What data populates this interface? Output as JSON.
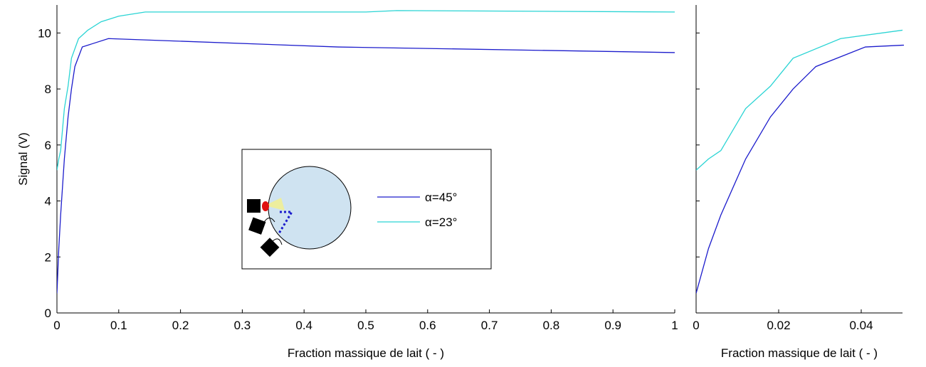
{
  "chart_data": [
    {
      "type": "line",
      "xlabel": "Fraction massique de lait ( - )",
      "ylabel": "Signal (V)",
      "xlim": [
        0,
        1
      ],
      "ylim": [
        0,
        11
      ],
      "xticks": [
        0,
        0.1,
        0.2,
        0.3,
        0.4,
        0.5,
        0.6,
        0.7,
        0.8,
        0.9,
        1
      ],
      "yticks": [
        0,
        2,
        4,
        6,
        8,
        10
      ],
      "ytick_labels": true,
      "legend": true,
      "series": [
        {
          "name": "α=45°",
          "color": "#1c1ccc",
          "x": [
            0,
            0.003,
            0.006,
            0.012,
            0.018,
            0.0235,
            0.029,
            0.041,
            0.0833,
            0.455,
            1
          ],
          "values": [
            0.7,
            2.3,
            3.5,
            5.5,
            7.0,
            8.0,
            8.8,
            9.5,
            9.8,
            9.5,
            9.3
          ]
        },
        {
          "name": "α=23°",
          "color": "#2ad4d4",
          "x": [
            0,
            0.003,
            0.006,
            0.012,
            0.018,
            0.0235,
            0.035,
            0.05,
            0.0714,
            0.1,
            0.143,
            0.5,
            0.55,
            1
          ],
          "values": [
            5.1,
            5.5,
            5.8,
            7.3,
            8.1,
            9.1,
            9.8,
            10.1,
            10.4,
            10.6,
            10.75,
            10.75,
            10.8,
            10.75
          ]
        }
      ]
    },
    {
      "type": "line",
      "xlabel": "Fraction massique de lait ( - )",
      "xlim": [
        0,
        0.05
      ],
      "ylim": [
        0,
        11
      ],
      "xticks": [
        0,
        0.02,
        0.04
      ],
      "yticks": [
        0,
        2,
        4,
        6,
        8,
        10
      ],
      "ytick_labels": false,
      "legend": false,
      "series": [
        {
          "name": "α=45°",
          "color": "#1c1ccc",
          "x": [
            0,
            0.003,
            0.006,
            0.012,
            0.018,
            0.0235,
            0.029,
            0.041,
            0.0833
          ],
          "values": [
            0.7,
            2.3,
            3.5,
            5.5,
            7.0,
            8.0,
            8.8,
            9.5,
            9.8
          ]
        },
        {
          "name": "α=23°",
          "color": "#2ad4d4",
          "x": [
            0,
            0.003,
            0.006,
            0.012,
            0.018,
            0.0235,
            0.035,
            0.05
          ],
          "values": [
            5.1,
            5.5,
            5.8,
            7.3,
            8.1,
            9.1,
            9.8,
            10.1
          ]
        }
      ]
    }
  ]
}
